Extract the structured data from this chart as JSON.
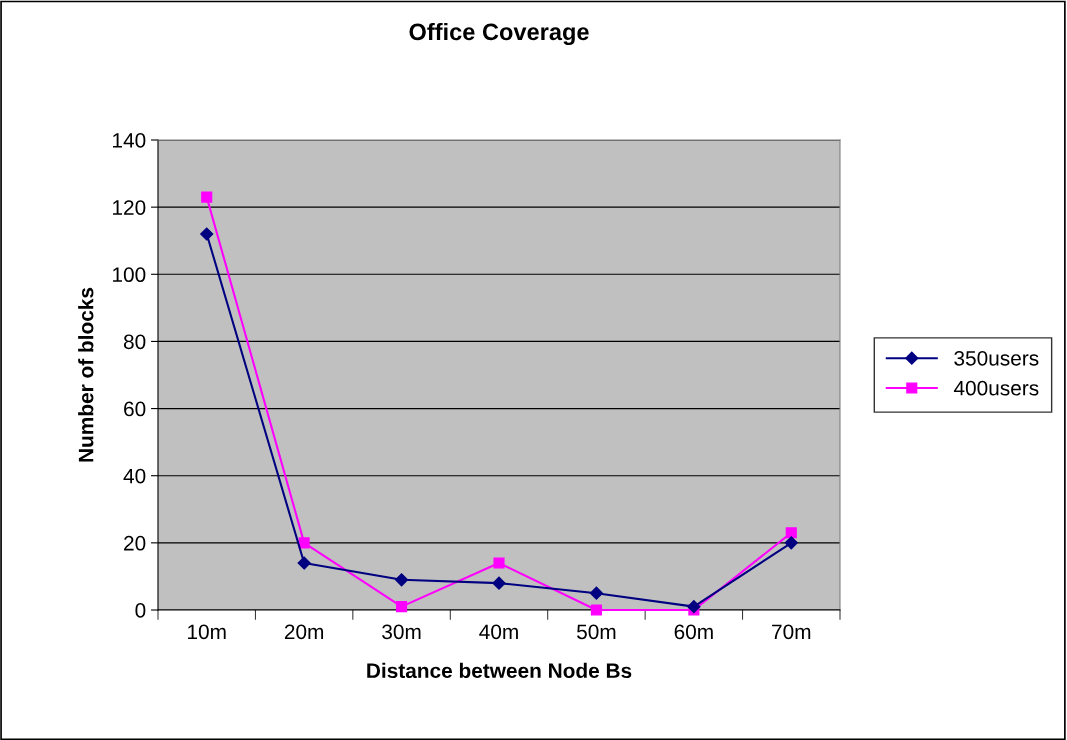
{
  "chart_data": {
    "type": "line",
    "title": "Office Coverage",
    "xlabel": "Distance between Node Bs",
    "ylabel": "Number of blocks",
    "categories": [
      "10m",
      "20m",
      "30m",
      "40m",
      "50m",
      "60m",
      "70m"
    ],
    "series": [
      {
        "name": "350users",
        "color": "#000080",
        "values": [
          112,
          14,
          9,
          8,
          5,
          1,
          20
        ],
        "marker": "diamond"
      },
      {
        "name": "400users",
        "color": "#ff00ff",
        "values": [
          123,
          20,
          1,
          14,
          0,
          0,
          23
        ],
        "marker": "square"
      }
    ],
    "ylim": [
      0,
      140
    ],
    "yticks": [
      0,
      20,
      40,
      60,
      80,
      100,
      120,
      140
    ],
    "grid": "y",
    "legend": "right",
    "line_style": "solid"
  }
}
